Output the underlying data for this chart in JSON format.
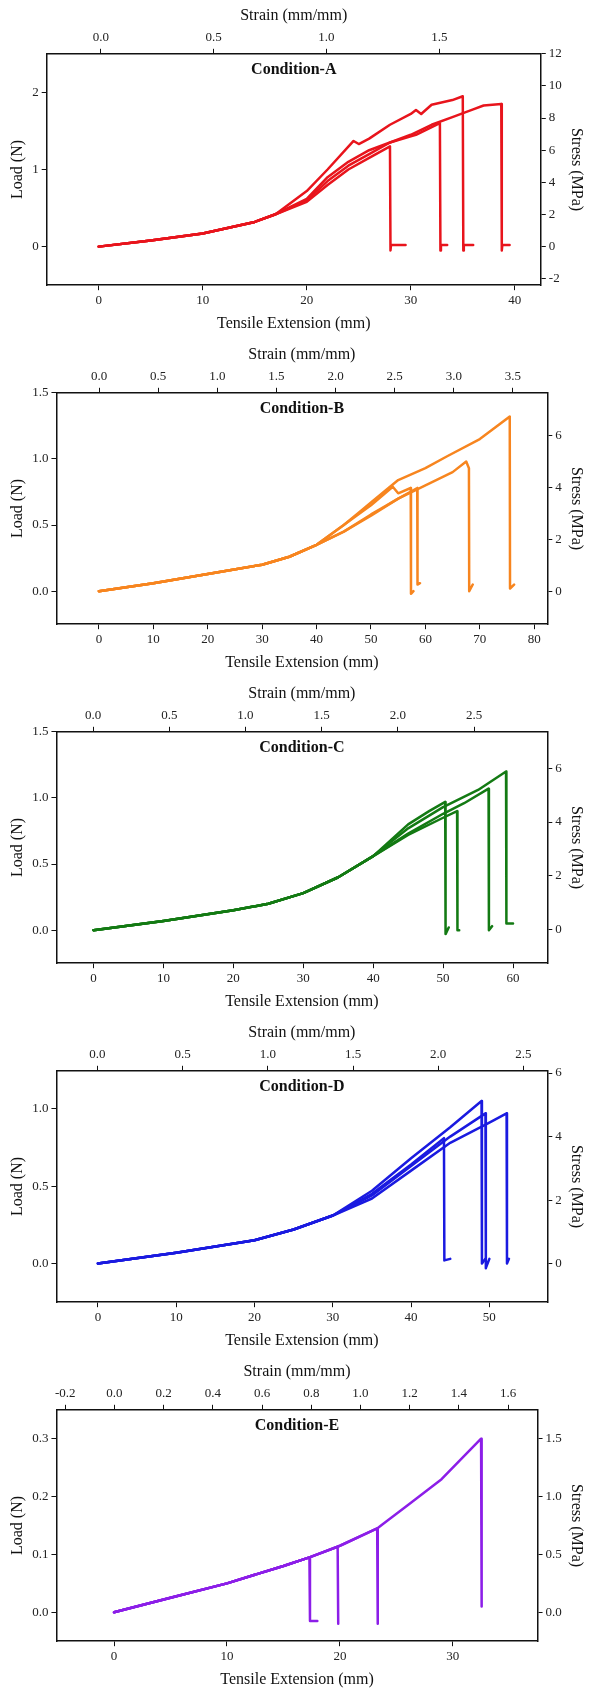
{
  "chart_data": [
    {
      "type": "line",
      "title": "Condition-A",
      "xlabel": "Tensile Extension (mm)",
      "ylabel": "Load (N)",
      "x2label": "Strain (mm/mm)",
      "y2label": "Stress (MPa)",
      "xlim": [
        -5,
        42.5
      ],
      "xticks": [
        0,
        10,
        20,
        30,
        40
      ],
      "ylim": [
        -0.5,
        2.5
      ],
      "yticks": [
        0,
        1,
        2
      ],
      "x2lim": [
        -0.24,
        1.95
      ],
      "x2ticks": [
        {
          "value": 0,
          "label": "0.0"
        },
        {
          "value": 0.5,
          "label": "0.5"
        },
        {
          "value": 1,
          "label": "1.0"
        },
        {
          "value": 1.5,
          "label": "1.5"
        }
      ],
      "y2lim": [
        -2.4,
        12
      ],
      "y2ticks": [
        -2,
        0,
        2,
        4,
        6,
        8,
        10,
        12
      ],
      "series": [
        {
          "color": "#e8141c",
          "x": [
            0,
            5,
            10,
            15,
            17,
            20,
            22,
            24,
            26,
            28,
            28.05,
            28.1,
            29.5
          ],
          "values": [
            0,
            0.08,
            0.17,
            0.32,
            0.42,
            0.58,
            0.8,
            1.0,
            1.15,
            1.3,
            -0.05,
            0.02,
            0.02
          ]
        },
        {
          "color": "#e8141c",
          "x": [
            0,
            5,
            10,
            15,
            17,
            20,
            22,
            24,
            26,
            28,
            30,
            30.5,
            32.8,
            32.85,
            32.9,
            33.5
          ],
          "values": [
            0,
            0.08,
            0.17,
            0.32,
            0.42,
            0.62,
            0.9,
            1.1,
            1.25,
            1.35,
            1.43,
            1.45,
            1.6,
            -0.05,
            0.02,
            0.02
          ]
        },
        {
          "color": "#e8141c",
          "x": [
            0,
            5,
            10,
            15,
            17,
            20,
            22,
            24.5,
            25,
            26,
            28,
            30,
            30.5,
            31,
            32,
            34,
            35,
            35.05,
            35.1,
            36
          ],
          "values": [
            0,
            0.08,
            0.17,
            0.32,
            0.42,
            0.72,
            1.0,
            1.37,
            1.33,
            1.4,
            1.58,
            1.72,
            1.77,
            1.72,
            1.84,
            1.9,
            1.95,
            -0.05,
            0.02,
            0.02
          ]
        },
        {
          "color": "#e8141c",
          "x": [
            0,
            5,
            10,
            15,
            17,
            20,
            22,
            24,
            26,
            28,
            30,
            32,
            34,
            36,
            37,
            38.7,
            38.75,
            38.8,
            39.5
          ],
          "values": [
            0,
            0.08,
            0.17,
            0.32,
            0.42,
            0.6,
            0.85,
            1.05,
            1.2,
            1.35,
            1.45,
            1.58,
            1.68,
            1.78,
            1.83,
            1.85,
            -0.05,
            0.02,
            0.02
          ]
        }
      ]
    },
    {
      "type": "line",
      "title": "Condition-B",
      "xlabel": "Tensile Extension (mm)",
      "ylabel": "Load (N)",
      "x2label": "Strain (mm/mm)",
      "y2label": "Stress (MPa)",
      "xlim": [
        -7.8,
        82.4
      ],
      "xticks": [
        0,
        10,
        20,
        30,
        40,
        50,
        60,
        70,
        80
      ],
      "ylim": [
        -0.25,
        1.5
      ],
      "yticks": [
        {
          "value": 0,
          "label": "0.0"
        },
        {
          "value": 0.5,
          "label": "0.5"
        },
        {
          "value": 1,
          "label": "1.0"
        },
        {
          "value": 1.5,
          "label": "1.5"
        }
      ],
      "x2lim": [
        -0.36,
        3.79
      ],
      "x2ticks": [
        {
          "value": 0,
          "label": "0.0"
        },
        {
          "value": 0.5,
          "label": "0.5"
        },
        {
          "value": 1,
          "label": "1.0"
        },
        {
          "value": 1.5,
          "label": "1.5"
        },
        {
          "value": 2,
          "label": "2.0"
        },
        {
          "value": 2.5,
          "label": "2.5"
        },
        {
          "value": 3,
          "label": "3.0"
        },
        {
          "value": 3.5,
          "label": "3.5"
        }
      ],
      "y2lim": [
        -1.25,
        7.65
      ],
      "y2ticks": [
        0,
        2,
        4,
        6
      ],
      "series": [
        {
          "color": "#f7851f",
          "x": [
            0,
            10,
            20,
            30,
            35,
            40,
            45,
            50,
            55,
            60,
            64,
            70,
            75.5,
            75.55,
            76.3
          ],
          "values": [
            0,
            0.06,
            0.13,
            0.2,
            0.26,
            0.35,
            0.5,
            0.67,
            0.84,
            0.93,
            1.02,
            1.15,
            1.32,
            0.02,
            0.05
          ]
        },
        {
          "color": "#f7851f",
          "x": [
            0,
            10,
            20,
            30,
            35,
            40,
            45,
            50,
            55,
            60,
            65,
            67.5,
            68,
            68.05,
            68.7
          ],
          "values": [
            0,
            0.06,
            0.13,
            0.2,
            0.26,
            0.35,
            0.45,
            0.58,
            0.7,
            0.8,
            0.9,
            0.98,
            0.93,
            0,
            0.05
          ]
        },
        {
          "color": "#f7851f",
          "x": [
            0,
            10,
            20,
            30,
            35,
            40,
            45,
            50,
            54,
            55,
            57.3,
            57.35,
            57.8
          ],
          "values": [
            0,
            0.06,
            0.13,
            0.2,
            0.26,
            0.35,
            0.5,
            0.65,
            0.79,
            0.74,
            0.78,
            -0.02,
            0
          ]
        },
        {
          "color": "#f7851f",
          "x": [
            0,
            10,
            20,
            30,
            35,
            40,
            45,
            50,
            55,
            58.5,
            58.55,
            59
          ],
          "values": [
            0,
            0.06,
            0.13,
            0.2,
            0.26,
            0.35,
            0.45,
            0.57,
            0.7,
            0.78,
            0.05,
            0.06
          ]
        }
      ]
    },
    {
      "type": "line",
      "title": "Condition-C",
      "xlabel": "Tensile Extension (mm)",
      "ylabel": "Load (N)",
      "x2label": "Strain (mm/mm)",
      "y2label": "Stress (MPa)",
      "xlim": [
        -5.3,
        64.9
      ],
      "xticks": [
        0,
        10,
        20,
        30,
        40,
        50,
        60
      ],
      "ylim": [
        -0.25,
        1.5
      ],
      "yticks": [
        {
          "value": 0,
          "label": "0.0"
        },
        {
          "value": 0.5,
          "label": "0.5"
        },
        {
          "value": 1,
          "label": "1.0"
        },
        {
          "value": 1.5,
          "label": "1.5"
        }
      ],
      "x2lim": [
        -0.24,
        2.98
      ],
      "x2ticks": [
        {
          "value": 0,
          "label": "0.0"
        },
        {
          "value": 0.5,
          "label": "0.5"
        },
        {
          "value": 1,
          "label": "1.0"
        },
        {
          "value": 1.5,
          "label": "1.5"
        },
        {
          "value": 2,
          "label": "2.0"
        },
        {
          "value": 2.5,
          "label": "2.5"
        }
      ],
      "y2lim": [
        -1.24,
        7.35
      ],
      "y2ticks": [
        0,
        2,
        4,
        6
      ],
      "series": [
        {
          "color": "#137a13",
          "x": [
            0,
            10,
            20,
            25,
            30,
            35,
            40,
            45,
            50,
            55,
            59,
            59.05,
            60
          ],
          "values": [
            0,
            0.07,
            0.15,
            0.2,
            0.28,
            0.4,
            0.56,
            0.77,
            0.93,
            1.06,
            1.2,
            0.05,
            0.05
          ]
        },
        {
          "color": "#137a13",
          "x": [
            0,
            10,
            20,
            25,
            30,
            35,
            40,
            45,
            50,
            53,
            56.5,
            56.55,
            57
          ],
          "values": [
            0,
            0.07,
            0.15,
            0.2,
            0.28,
            0.4,
            0.56,
            0.73,
            0.88,
            0.96,
            1.07,
            0,
            0.03
          ]
        },
        {
          "color": "#137a13",
          "x": [
            0,
            10,
            20,
            25,
            30,
            35,
            40,
            45,
            48,
            50.3,
            50.35,
            50.8
          ],
          "values": [
            0,
            0.07,
            0.15,
            0.2,
            0.28,
            0.4,
            0.56,
            0.8,
            0.9,
            0.97,
            -0.03,
            0.02
          ]
        },
        {
          "color": "#137a13",
          "x": [
            0,
            10,
            20,
            25,
            30,
            35,
            40,
            45,
            50,
            52,
            52.05,
            52.3
          ],
          "values": [
            0,
            0.07,
            0.15,
            0.2,
            0.28,
            0.4,
            0.56,
            0.72,
            0.85,
            0.9,
            0,
            0
          ]
        }
      ]
    },
    {
      "type": "line",
      "title": "Condition-D",
      "xlabel": "Tensile Extension (mm)",
      "ylabel": "Load (N)",
      "x2label": "Strain (mm/mm)",
      "y2label": "Stress (MPa)",
      "xlim": [
        -5.3,
        57.4
      ],
      "xticks": [
        0,
        10,
        20,
        30,
        40,
        50
      ],
      "ylim": [
        -0.25,
        1.245
      ],
      "yticks": [
        {
          "value": 0,
          "label": "0.0"
        },
        {
          "value": 0.5,
          "label": "0.5"
        },
        {
          "value": 1,
          "label": "1.0"
        }
      ],
      "x2lim": [
        -0.24,
        2.64
      ],
      "x2ticks": [
        {
          "value": 0,
          "label": "0.0"
        },
        {
          "value": 0.5,
          "label": "0.5"
        },
        {
          "value": 1,
          "label": "1.0"
        },
        {
          "value": 1.5,
          "label": "1.5"
        },
        {
          "value": 2,
          "label": "2.0"
        },
        {
          "value": 2.5,
          "label": "2.5"
        }
      ],
      "y2lim": [
        -1.21,
        6.07
      ],
      "y2ticks": [
        0,
        2,
        4,
        6
      ],
      "series": [
        {
          "color": "#1a1ae0",
          "x": [
            0,
            10,
            20,
            25,
            30,
            35,
            40,
            45,
            49,
            49.05,
            49.5
          ],
          "values": [
            0,
            0.07,
            0.15,
            0.22,
            0.31,
            0.47,
            0.68,
            0.88,
            1.05,
            0,
            0.03
          ]
        },
        {
          "color": "#1a1ae0",
          "x": [
            0,
            10,
            20,
            25,
            30,
            35,
            40,
            45,
            49.5,
            49.55,
            50
          ],
          "values": [
            0,
            0.07,
            0.15,
            0.22,
            0.31,
            0.44,
            0.63,
            0.82,
            0.97,
            -0.03,
            0.03
          ]
        },
        {
          "color": "#1a1ae0",
          "x": [
            0,
            10,
            20,
            25,
            30,
            35,
            40,
            45,
            50,
            52.2,
            52.25,
            52.5
          ],
          "values": [
            0,
            0.07,
            0.15,
            0.22,
            0.31,
            0.42,
            0.6,
            0.78,
            0.91,
            0.97,
            0,
            0.03
          ]
        },
        {
          "color": "#1a1ae0",
          "x": [
            0,
            10,
            20,
            25,
            30,
            35,
            40,
            44.2,
            44.25,
            45
          ],
          "values": [
            0,
            0.07,
            0.15,
            0.22,
            0.31,
            0.45,
            0.64,
            0.81,
            0.02,
            0.03
          ]
        }
      ]
    },
    {
      "type": "line",
      "title": "Condition-E",
      "xlabel": "Tensile Extension (mm)",
      "ylabel": "Load (N)",
      "x2label": "Strain (mm/mm)",
      "y2label": "Stress (MPa)",
      "xlim": [
        -5.1,
        37.5
      ],
      "xticks": [
        0,
        10,
        20,
        30
      ],
      "ylim": [
        -0.05,
        0.35
      ],
      "yticks": [
        {
          "value": 0,
          "label": "0.0"
        },
        {
          "value": 0.1,
          "label": "0.1"
        },
        {
          "value": 0.2,
          "label": "0.2"
        },
        {
          "value": 0.3,
          "label": "0.3"
        }
      ],
      "x2lim": [
        -0.236,
        1.72
      ],
      "x2ticks": [
        {
          "value": -0.2,
          "label": "-0.2"
        },
        {
          "value": 0,
          "label": "0.0"
        },
        {
          "value": 0.2,
          "label": "0.2"
        },
        {
          "value": 0.4,
          "label": "0.4"
        },
        {
          "value": 0.6,
          "label": "0.6"
        },
        {
          "value": 0.8,
          "label": "0.8"
        },
        {
          "value": 1,
          "label": "1.0"
        },
        {
          "value": 1.2,
          "label": "1.2"
        },
        {
          "value": 1.4,
          "label": "1.4"
        },
        {
          "value": 1.6,
          "label": "1.6"
        }
      ],
      "y2lim": [
        -0.25,
        1.75
      ],
      "y2ticks": [
        {
          "value": 0,
          "label": "0.0"
        },
        {
          "value": 0.5,
          "label": "0.5"
        },
        {
          "value": 1,
          "label": "1.0"
        },
        {
          "value": 1.5,
          "label": "1.5"
        }
      ],
      "series": [
        {
          "color": "#8c1ee8",
          "x": [
            0,
            5,
            10,
            15,
            17.3,
            17.35,
            18
          ],
          "values": [
            0,
            0.025,
            0.05,
            0.08,
            0.095,
            -0.015,
            -0.015
          ]
        },
        {
          "color": "#8c1ee8",
          "x": [
            0,
            5,
            10,
            15,
            17.3,
            19.8,
            19.85
          ],
          "values": [
            0,
            0.025,
            0.05,
            0.08,
            0.095,
            0.113,
            -0.02
          ]
        },
        {
          "color": "#8c1ee8",
          "x": [
            0,
            5,
            10,
            15,
            17.3,
            20,
            23.3,
            23.35
          ],
          "values": [
            0,
            0.025,
            0.05,
            0.08,
            0.095,
            0.115,
            0.145,
            -0.02
          ]
        },
        {
          "color": "#8c1ee8",
          "x": [
            0,
            5,
            10,
            15,
            17.3,
            20,
            23.3,
            26,
            29,
            32.5,
            32.55
          ],
          "values": [
            0,
            0.025,
            0.05,
            0.08,
            0.095,
            0.115,
            0.145,
            0.185,
            0.23,
            0.3,
            0.01
          ]
        }
      ]
    }
  ]
}
